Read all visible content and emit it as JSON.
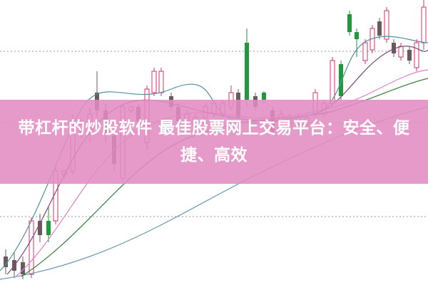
{
  "article": {
    "title": "带杠杆的炒股软件 最佳股票网上交易平台：安全、便捷、高效"
  },
  "chart": {
    "kind": "candlestick",
    "up_color": "#d4306e",
    "down_color": "#6b5a5a",
    "green_color": "#1f9a3a",
    "banner_color": "#e18cc3"
  }
}
